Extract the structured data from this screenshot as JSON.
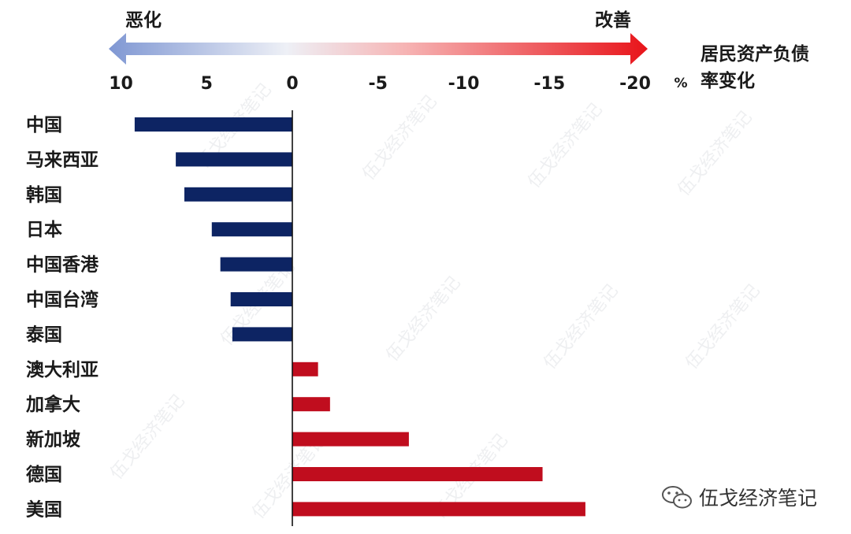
{
  "chart_data": {
    "type": "bar",
    "orientation": "horizontal",
    "axis_reversed": true,
    "xlim": [
      10,
      -20
    ],
    "xticks": [
      10,
      5,
      0,
      -5,
      -10,
      -15,
      -20
    ],
    "x_unit": "%",
    "xlabel": "居民资产负债率变化",
    "arrow_left_label": "恶化",
    "arrow_right_label": "改善",
    "categories": [
      "中国",
      "马来西亚",
      "韩国",
      "日本",
      "中国香港",
      "中国台湾",
      "泰国",
      "澳大利亚",
      "加拿大",
      "新加坡",
      "德国",
      "美国"
    ],
    "values": [
      9.2,
      6.8,
      6.3,
      4.7,
      4.2,
      3.6,
      3.5,
      -1.5,
      -2.2,
      -6.8,
      -14.6,
      -17.1
    ],
    "colors": {
      "positive": "#0d2463",
      "negative": "#c00d1e"
    },
    "grid": false,
    "legend": "none"
  },
  "source": "伍戈经济笔记",
  "icons": {
    "source_icon": "wechat-icon"
  }
}
